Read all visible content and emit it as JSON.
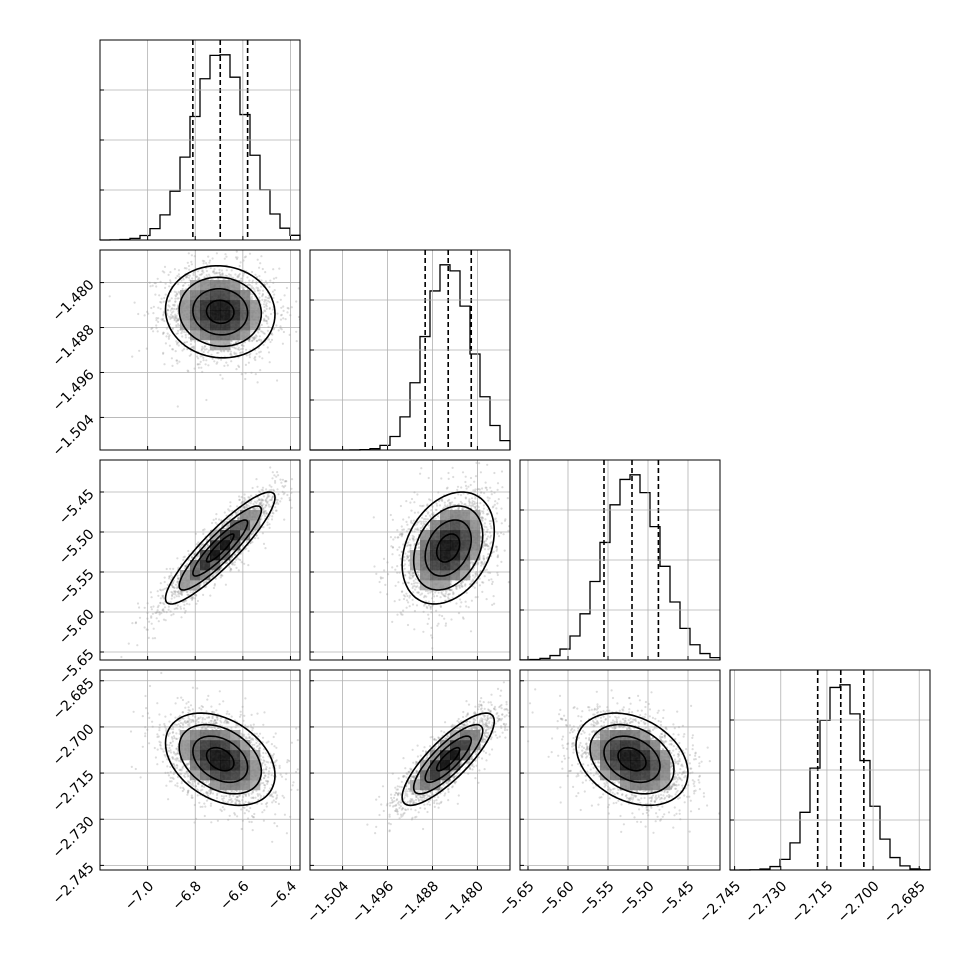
{
  "chart_data": {
    "type": "corner",
    "title": "",
    "parameters": [
      {
        "index": 0,
        "range": [
          -7.2,
          -6.36
        ],
        "mean": -6.695,
        "sd": 0.115,
        "quantiles": [
          -6.81,
          -6.695,
          -6.58
        ],
        "ticks": [
          {
            "v": -7.0,
            "label": "−7.0"
          },
          {
            "v": -6.8,
            "label": "−6.8"
          },
          {
            "v": -6.6,
            "label": "−6.6"
          },
          {
            "v": -6.4,
            "label": "−6.4"
          }
        ]
      },
      {
        "index": 1,
        "range": [
          -1.5098,
          -1.4742
        ],
        "mean": -1.4852,
        "sd": 0.0041,
        "quantiles": [
          -1.4893,
          -1.4852,
          -1.4811
        ],
        "ticks": [
          {
            "v": -1.504,
            "label": "−1.504"
          },
          {
            "v": -1.496,
            "label": "−1.496"
          },
          {
            "v": -1.488,
            "label": "−1.488"
          },
          {
            "v": -1.48,
            "label": "−1.480"
          }
        ]
      },
      {
        "index": 2,
        "range": [
          -5.66,
          -5.41
        ],
        "mean": -5.52,
        "sd": 0.035,
        "quantiles": [
          -5.555,
          -5.52,
          -5.487
        ],
        "ticks": [
          {
            "v": -5.65,
            "label": "−5.65"
          },
          {
            "v": -5.6,
            "label": "−5.60"
          },
          {
            "v": -5.55,
            "label": "−5.55"
          },
          {
            "v": -5.5,
            "label": "−5.50"
          },
          {
            "v": -5.45,
            "label": "−5.45"
          }
        ]
      },
      {
        "index": 3,
        "range": [
          -2.7465,
          -2.6815
        ],
        "mean": -2.7105,
        "sd": 0.0075,
        "quantiles": [
          -2.718,
          -2.7105,
          -2.703
        ],
        "ticks": [
          {
            "v": -2.745,
            "label": "−2.745"
          },
          {
            "v": -2.73,
            "label": "−2.730"
          },
          {
            "v": -2.715,
            "label": "−2.715"
          },
          {
            "v": -2.7,
            "label": "−2.700"
          },
          {
            "v": -2.685,
            "label": "−2.685"
          }
        ]
      }
    ],
    "correlations": [
      {
        "pair": [
          1,
          0
        ],
        "rho": -0.05
      },
      {
        "pair": [
          2,
          0
        ],
        "rho": 0.9
      },
      {
        "pair": [
          2,
          1
        ],
        "rho": 0.3
      },
      {
        "pair": [
          3,
          0
        ],
        "rho": -0.35
      },
      {
        "pair": [
          3,
          1
        ],
        "rho": 0.82
      },
      {
        "pair": [
          3,
          2
        ],
        "rho": -0.3
      }
    ],
    "histogram_bins": 20,
    "quantile_lines": "dashed",
    "grid": true
  }
}
